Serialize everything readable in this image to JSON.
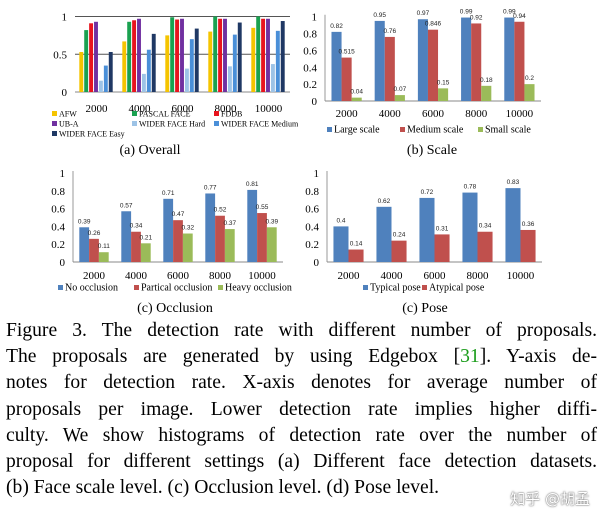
{
  "chart_data": [
    {
      "type": "bar",
      "categories": [
        "2000",
        "4000",
        "6000",
        "8000",
        "10000"
      ],
      "ylim": [
        0,
        1
      ],
      "yticks": [
        "0",
        "0.5",
        "1"
      ],
      "grid": true,
      "legend_placement": "bottom",
      "caption": "(a) Overall",
      "series": [
        {
          "name": "AFW",
          "color": "#f5c400",
          "values": [
            0.53,
            0.67,
            0.75,
            0.8,
            0.85
          ]
        },
        {
          "name": "PASCAL FACE",
          "color": "#1aa150",
          "values": [
            0.82,
            0.93,
            0.99,
            1.0,
            1.0
          ]
        },
        {
          "name": "FDDB",
          "color": "#e8141e",
          "values": [
            0.91,
            0.95,
            0.96,
            0.97,
            0.97
          ]
        },
        {
          "name": "UB-A",
          "color": "#7030a0",
          "values": [
            0.93,
            0.97,
            0.97,
            0.97,
            0.97
          ]
        },
        {
          "name": "WIDER FACE Hard",
          "color": "#9dc3e6",
          "values": [
            0.15,
            0.24,
            0.31,
            0.34,
            0.37
          ]
        },
        {
          "name": "WIDER FACE Medium",
          "color": "#4a8fd8",
          "values": [
            0.35,
            0.56,
            0.7,
            0.76,
            0.81
          ]
        },
        {
          "name": "WIDER FACE Easy",
          "color": "#1f3864",
          "values": [
            0.53,
            0.77,
            0.84,
            0.92,
            0.94
          ]
        }
      ]
    },
    {
      "type": "bar",
      "categories": [
        "2000",
        "4000",
        "6000",
        "8000",
        "10000"
      ],
      "ylim": [
        0,
        1
      ],
      "yticks": [
        "0",
        "0.2",
        "0.4",
        "0.6",
        "0.8",
        "1"
      ],
      "grid": false,
      "legend_placement": "bottom",
      "caption": "(b) Scale",
      "series": [
        {
          "name": "Large scale",
          "color": "#4f81bd",
          "values": [
            0.82,
            0.95,
            0.97,
            0.99,
            0.99
          ],
          "labels": [
            "0.82",
            "0.95",
            "0.97",
            "0.99",
            "0.99"
          ]
        },
        {
          "name": "Medium scale",
          "color": "#c0504d",
          "values": [
            0.515,
            0.76,
            0.846,
            0.92,
            0.94
          ],
          "labels": [
            "0.515",
            "0.76",
            "0.846",
            "0.92",
            "0.94"
          ]
        },
        {
          "name": "Small scale",
          "color": "#9bbb59",
          "values": [
            0.04,
            0.07,
            0.15,
            0.18,
            0.2
          ],
          "labels": [
            "0.04",
            "0.07",
            "0.15",
            "0.18",
            "0.2"
          ]
        }
      ]
    },
    {
      "type": "bar",
      "categories": [
        "2000",
        "4000",
        "6000",
        "8000",
        "10000"
      ],
      "ylim": [
        0,
        1
      ],
      "yticks": [
        "0",
        "0.2",
        "0.4",
        "0.6",
        "0.8",
        "1"
      ],
      "grid": false,
      "legend_placement": "bottom",
      "caption": "(c) Occlusion",
      "series": [
        {
          "name": "No occlusion",
          "color": "#4f81bd",
          "values": [
            0.39,
            0.57,
            0.71,
            0.77,
            0.81
          ],
          "labels": [
            "0.39",
            "0.57",
            "0.71",
            "0.77",
            "0.81"
          ]
        },
        {
          "name": "Partical occlusion",
          "color": "#c0504d",
          "values": [
            0.26,
            0.34,
            0.47,
            0.52,
            0.55
          ],
          "labels": [
            "0.26",
            "0.34",
            "0.47",
            "0.52",
            "0.55"
          ]
        },
        {
          "name": "Heavy occlusion",
          "color": "#9bbb59",
          "values": [
            0.11,
            0.21,
            0.32,
            0.37,
            0.39
          ],
          "labels": [
            "0.11",
            "0.21",
            "0.32",
            "0.37",
            "0.39"
          ]
        }
      ]
    },
    {
      "type": "bar",
      "categories": [
        "2000",
        "4000",
        "6000",
        "8000",
        "10000"
      ],
      "ylim": [
        0,
        1
      ],
      "yticks": [
        "0",
        "0.2",
        "0.4",
        "0.6",
        "0.8",
        "1"
      ],
      "grid": false,
      "legend_placement": "bottom",
      "caption": "(c) Pose",
      "series": [
        {
          "name": "Typical pose",
          "color": "#4f81bd",
          "values": [
            0.4,
            0.62,
            0.72,
            0.78,
            0.83
          ],
          "labels": [
            "0.4",
            "0.62",
            "0.72",
            "0.78",
            "0.83"
          ]
        },
        {
          "name": "Atypical pose",
          "color": "#c0504d",
          "values": [
            0.14,
            0.24,
            0.31,
            0.34,
            0.36
          ],
          "labels": [
            "0.14",
            "0.24",
            "0.31",
            "0.34",
            "0.36"
          ]
        }
      ]
    }
  ],
  "caption": {
    "lines": [
      {
        "text": "Figure 3. The detection rate with different number of proposals."
      },
      {
        "before": "The proposals are generated by using Edgebox [",
        "cite": "31",
        "after": "].  Y-axis de-"
      },
      {
        "text": "notes for detection rate.  X-axis denotes for average number of"
      },
      {
        "text": "proposals per image.  Lower detection rate implies higher diffi-"
      },
      {
        "text": "culty.  We show histograms of detection rate over the number of"
      },
      {
        "text": "proposal for different settings (a) Different face detection datasets."
      },
      {
        "text": "(b) Face scale level. (c) Occlusion level. (d) Pose level.",
        "last": true
      }
    ]
  },
  "watermark": "知乎 @胡孟"
}
